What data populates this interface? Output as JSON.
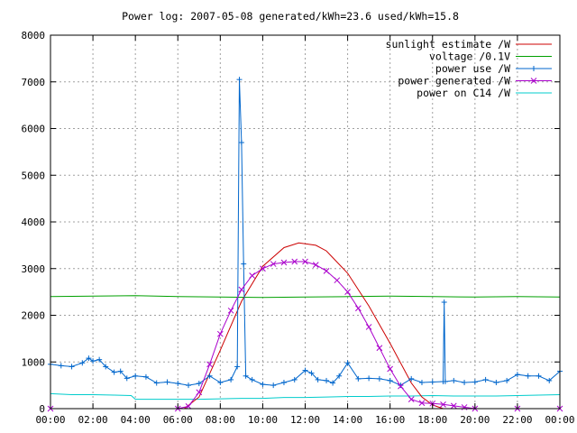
{
  "chart_data": {
    "type": "line",
    "title": "Power log: 2007-05-08 generated/kWh=23.6 used/kWh=15.8",
    "xlabel": "",
    "ylabel": "",
    "xlim": [
      0,
      24
    ],
    "ylim": [
      0,
      8000
    ],
    "x_ticks": [
      "00:00",
      "02:00",
      "04:00",
      "06:00",
      "08:00",
      "10:00",
      "12:00",
      "14:00",
      "16:00",
      "18:00",
      "20:00",
      "22:00",
      "00:00"
    ],
    "y_ticks": [
      "0",
      "1000",
      "2000",
      "3000",
      "4000",
      "5000",
      "6000",
      "7000",
      "8000"
    ],
    "grid": true,
    "legend_position": "top-right",
    "series": [
      {
        "name": "sunlight estimate /W",
        "color": "#cc0000",
        "marker": "none",
        "x": [
          6.3,
          7.0,
          8.0,
          9.0,
          10.0,
          11.0,
          11.7,
          12.5,
          13.0,
          14.0,
          15.0,
          16.0,
          17.0,
          17.5,
          18.0,
          18.5
        ],
        "y": [
          0,
          250,
          1250,
          2300,
          3050,
          3450,
          3550,
          3500,
          3380,
          2900,
          2200,
          1400,
          550,
          250,
          80,
          0
        ]
      },
      {
        "name": "voltage /0.1V",
        "color": "#00a000",
        "marker": "none",
        "x": [
          0,
          2,
          4,
          6,
          8,
          10,
          12,
          14,
          16,
          18,
          20,
          22,
          24
        ],
        "y": [
          2400,
          2410,
          2420,
          2400,
          2390,
          2380,
          2390,
          2400,
          2410,
          2400,
          2390,
          2400,
          2390
        ]
      },
      {
        "name": "power use /W",
        "color": "#0066cc",
        "marker": "+",
        "x": [
          0,
          0.5,
          1.0,
          1.5,
          1.8,
          2.0,
          2.3,
          2.6,
          3.0,
          3.3,
          3.6,
          4.0,
          4.5,
          5.0,
          5.5,
          6.0,
          6.5,
          7.0,
          7.5,
          8.0,
          8.5,
          8.8,
          8.9,
          9.0,
          9.1,
          9.2,
          9.5,
          10.0,
          10.5,
          11.0,
          11.5,
          12.0,
          12.3,
          12.6,
          13.0,
          13.3,
          13.6,
          14.0,
          14.5,
          15.0,
          15.5,
          16.0,
          16.5,
          17.0,
          17.5,
          18.0,
          18.5,
          18.55,
          18.6,
          19.0,
          19.5,
          20.0,
          20.5,
          21.0,
          21.5,
          22.0,
          22.5,
          23.0,
          23.5,
          24.0
        ],
        "y": [
          950,
          920,
          900,
          980,
          1080,
          1020,
          1050,
          900,
          780,
          800,
          650,
          700,
          680,
          550,
          570,
          540,
          500,
          540,
          700,
          560,
          620,
          900,
          7050,
          5700,
          3100,
          700,
          620,
          520,
          500,
          560,
          620,
          820,
          760,
          620,
          600,
          550,
          700,
          980,
          640,
          650,
          640,
          600,
          500,
          640,
          560,
          570,
          580,
          2280,
          580,
          600,
          560,
          570,
          620,
          560,
          600,
          730,
          700,
          700,
          600,
          800
        ]
      },
      {
        "name": "power generated /W",
        "color": "#aa00cc",
        "marker": "x",
        "x": [
          0,
          6.0,
          6.5,
          7.0,
          7.5,
          8.0,
          8.5,
          9.0,
          9.5,
          10.0,
          10.5,
          11.0,
          11.5,
          12.0,
          12.5,
          13.0,
          13.5,
          14.0,
          14.5,
          15.0,
          15.5,
          16.0,
          16.5,
          17.0,
          17.5,
          18.0,
          18.5,
          19.0,
          19.5,
          20.0,
          22.0,
          24.0
        ],
        "y": [
          0,
          0,
          50,
          350,
          950,
          1600,
          2100,
          2550,
          2850,
          3000,
          3100,
          3130,
          3150,
          3150,
          3080,
          2950,
          2750,
          2500,
          2150,
          1750,
          1300,
          850,
          480,
          200,
          120,
          110,
          90,
          60,
          30,
          0,
          0,
          0
        ]
      },
      {
        "name": "power on C14 /W",
        "color": "#00cccc",
        "marker": "none",
        "x": [
          0,
          1.0,
          2.0,
          3.0,
          3.8,
          4.0,
          5.0,
          6.0,
          7.0,
          8.0,
          9.0,
          10.0,
          11.0,
          12.0,
          13.0,
          14.0,
          15.0,
          16.0,
          17.0,
          18.0,
          19.0,
          20.0,
          21.0,
          22.0,
          23.0,
          24.0
        ],
        "y": [
          320,
          300,
          300,
          290,
          280,
          200,
          200,
          200,
          200,
          210,
          220,
          220,
          240,
          240,
          250,
          260,
          260,
          270,
          270,
          280,
          270,
          270,
          270,
          280,
          290,
          300
        ]
      }
    ]
  }
}
